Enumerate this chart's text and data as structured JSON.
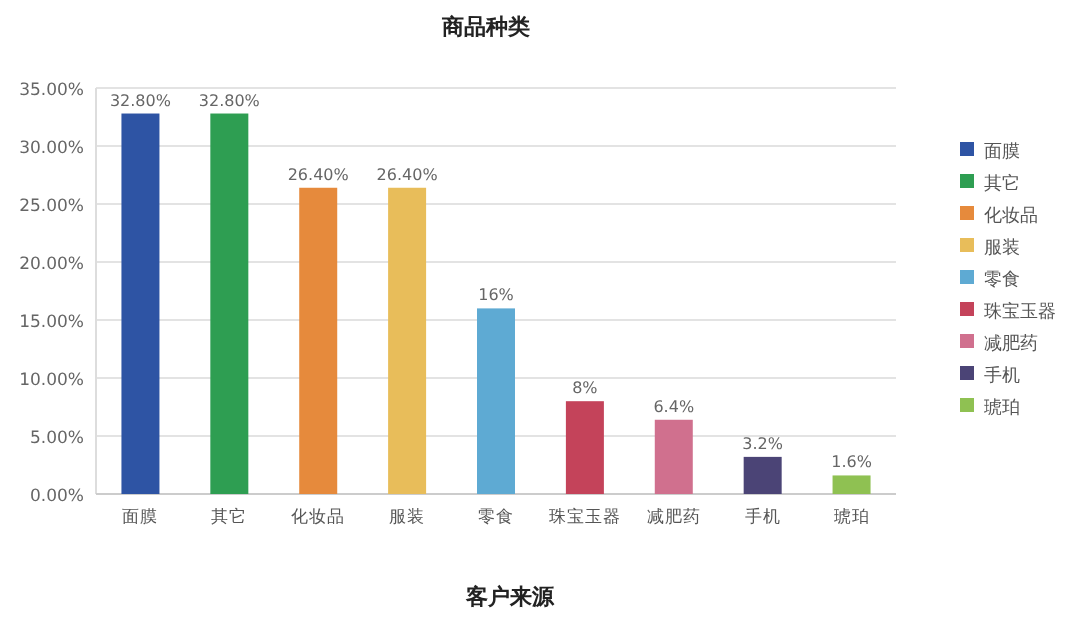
{
  "chart_data": {
    "type": "bar",
    "title": "商品种类",
    "xlabel": "客户来源",
    "categories": [
      "面膜",
      "其它",
      "化妆品",
      "服装",
      "零食",
      "珠宝玉器",
      "减肥药",
      "手机",
      "琥珀"
    ],
    "series": [
      {
        "name": "面膜",
        "color": "#2e54a4",
        "values": [
          32.8,
          null,
          null,
          null,
          null,
          null,
          null,
          null,
          null
        ],
        "value_labels": [
          "32.80%",
          null,
          null,
          null,
          null,
          null,
          null,
          null,
          null
        ]
      },
      {
        "name": "其它",
        "color": "#2e9e52",
        "values": [
          null,
          32.8,
          null,
          null,
          null,
          null,
          null,
          null,
          null
        ],
        "value_labels": [
          null,
          "32.80%",
          null,
          null,
          null,
          null,
          null,
          null,
          null
        ]
      },
      {
        "name": "化妆品",
        "color": "#e68a3c",
        "values": [
          null,
          null,
          26.4,
          null,
          null,
          null,
          null,
          null,
          null
        ],
        "value_labels": [
          null,
          null,
          "26.40%",
          null,
          null,
          null,
          null,
          null,
          null
        ]
      },
      {
        "name": "服装",
        "color": "#e8bd5a",
        "values": [
          null,
          null,
          null,
          26.4,
          null,
          null,
          null,
          null,
          null
        ],
        "value_labels": [
          null,
          null,
          null,
          "26.40%",
          null,
          null,
          null,
          null,
          null
        ]
      },
      {
        "name": "零食",
        "color": "#5eaad3",
        "values": [
          null,
          null,
          null,
          null,
          16,
          null,
          null,
          null,
          null
        ],
        "value_labels": [
          null,
          null,
          null,
          null,
          "16%",
          null,
          null,
          null,
          null
        ]
      },
      {
        "name": "珠宝玉器",
        "color": "#c4435a",
        "values": [
          null,
          null,
          null,
          null,
          null,
          8,
          null,
          null,
          null
        ],
        "value_labels": [
          null,
          null,
          null,
          null,
          null,
          "8%",
          null,
          null,
          null
        ]
      },
      {
        "name": "减肥药",
        "color": "#d0708e",
        "values": [
          null,
          null,
          null,
          null,
          null,
          null,
          6.4,
          null,
          null
        ],
        "value_labels": [
          null,
          null,
          null,
          null,
          null,
          null,
          "6.4%",
          null,
          null
        ]
      },
      {
        "name": "手机",
        "color": "#4b4476",
        "values": [
          null,
          null,
          null,
          null,
          null,
          null,
          null,
          3.2,
          null
        ],
        "value_labels": [
          null,
          null,
          null,
          null,
          null,
          null,
          null,
          "3.2%",
          null
        ]
      },
      {
        "name": "琥珀",
        "color": "#8fc152",
        "values": [
          null,
          null,
          null,
          null,
          null,
          null,
          null,
          null,
          1.6
        ],
        "value_labels": [
          null,
          null,
          null,
          null,
          null,
          null,
          null,
          null,
          "1.6%"
        ]
      }
    ],
    "ylim": [
      0,
      35
    ],
    "yticks": [
      {
        "value": 0,
        "label": "0.00%"
      },
      {
        "value": 5,
        "label": "5.00%"
      },
      {
        "value": 10,
        "label": "10.00%"
      },
      {
        "value": 15,
        "label": "15.00%"
      },
      {
        "value": 20,
        "label": "20.00%"
      },
      {
        "value": 25,
        "label": "25.00%"
      },
      {
        "value": 30,
        "label": "30.00%"
      },
      {
        "value": 35,
        "label": "35.00%"
      }
    ],
    "grid": "y",
    "legend": "right"
  }
}
